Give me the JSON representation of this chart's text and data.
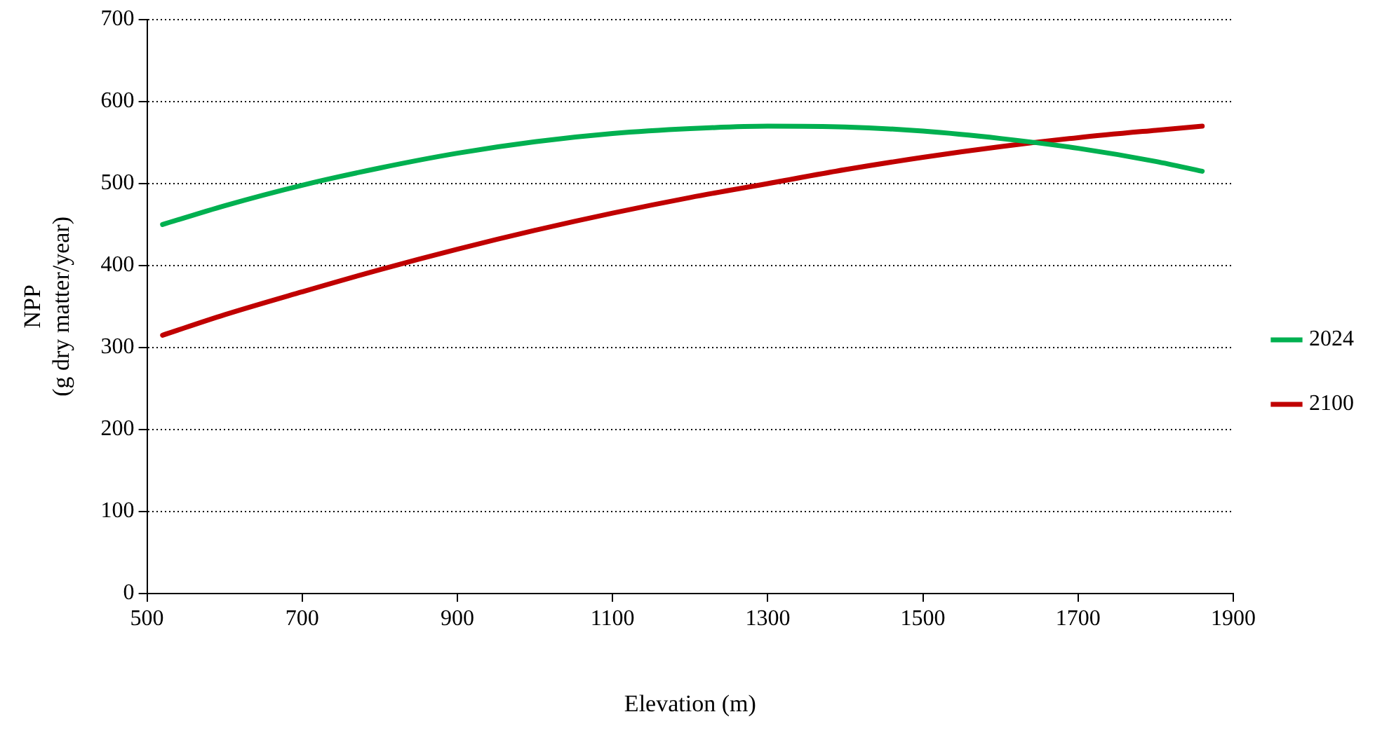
{
  "chart_data": {
    "type": "line",
    "xlabel": "Elevation (m)",
    "ylabel": "NPP\n(g dry matter/year)",
    "x": [
      520,
      600,
      700,
      800,
      900,
      1000,
      1100,
      1200,
      1300,
      1400,
      1500,
      1600,
      1700,
      1800,
      1860
    ],
    "series": [
      {
        "name": "2024",
        "color": "#00b050",
        "values": [
          450,
          473,
          498,
          519,
          537,
          551,
          561,
          567,
          570,
          569,
          564,
          555,
          543,
          527,
          515
        ]
      },
      {
        "name": "2100",
        "color": "#c00000",
        "values": [
          315,
          340,
          368,
          395,
          420,
          443,
          464,
          483,
          500,
          517,
          532,
          545,
          556,
          565,
          570
        ]
      }
    ],
    "xlim": [
      500,
      1900
    ],
    "xticks": [
      500,
      700,
      900,
      1100,
      1300,
      1500,
      1700,
      1900
    ],
    "ylim": [
      0,
      700
    ],
    "yticks": [
      0,
      100,
      200,
      300,
      400,
      500,
      600,
      700
    ],
    "grid": "y",
    "legend": "right",
    "marker": "none",
    "line_style": "solid"
  }
}
